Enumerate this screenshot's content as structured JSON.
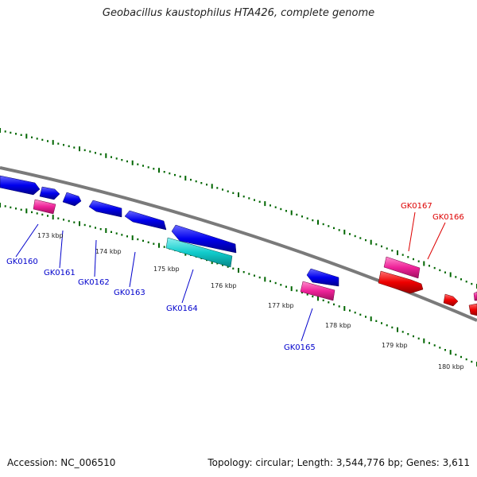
{
  "title": "Geobacillus kaustophilus HTA426, complete genome",
  "footer": {
    "accession": "Accession: NC_006510",
    "topology": "Topology: circular; Length: 3,544,776 bp; Genes: 3,611"
  },
  "ticks": [
    {
      "label": "173 kbp"
    },
    {
      "label": "174 kbp"
    },
    {
      "label": "175 kbp"
    },
    {
      "label": "176 kbp"
    },
    {
      "label": "177 kbp"
    },
    {
      "label": "178 kbp"
    },
    {
      "label": "179 kbp"
    },
    {
      "label": "180 kbp"
    }
  ],
  "genes": [
    {
      "name": "GK0160",
      "color": "#0000cc"
    },
    {
      "name": "GK0161",
      "color": "#0000cc"
    },
    {
      "name": "GK0162",
      "color": "#0000cc"
    },
    {
      "name": "GK0163",
      "color": "#0000cc"
    },
    {
      "name": "GK0164",
      "color": "#0000cc"
    },
    {
      "name": "GK0165",
      "color": "#0000cc"
    },
    {
      "name": "GK0167",
      "color": "#dd0000"
    },
    {
      "name": "GK0166",
      "color": "#dd0000"
    }
  ],
  "colors": {
    "forward_cds": "#0000ee",
    "rna_pink": "#ee2299",
    "rna_cyan": "#11cccc",
    "red_cds": "#ee0000",
    "backbone": "#888888",
    "tick_green": "#006600"
  }
}
